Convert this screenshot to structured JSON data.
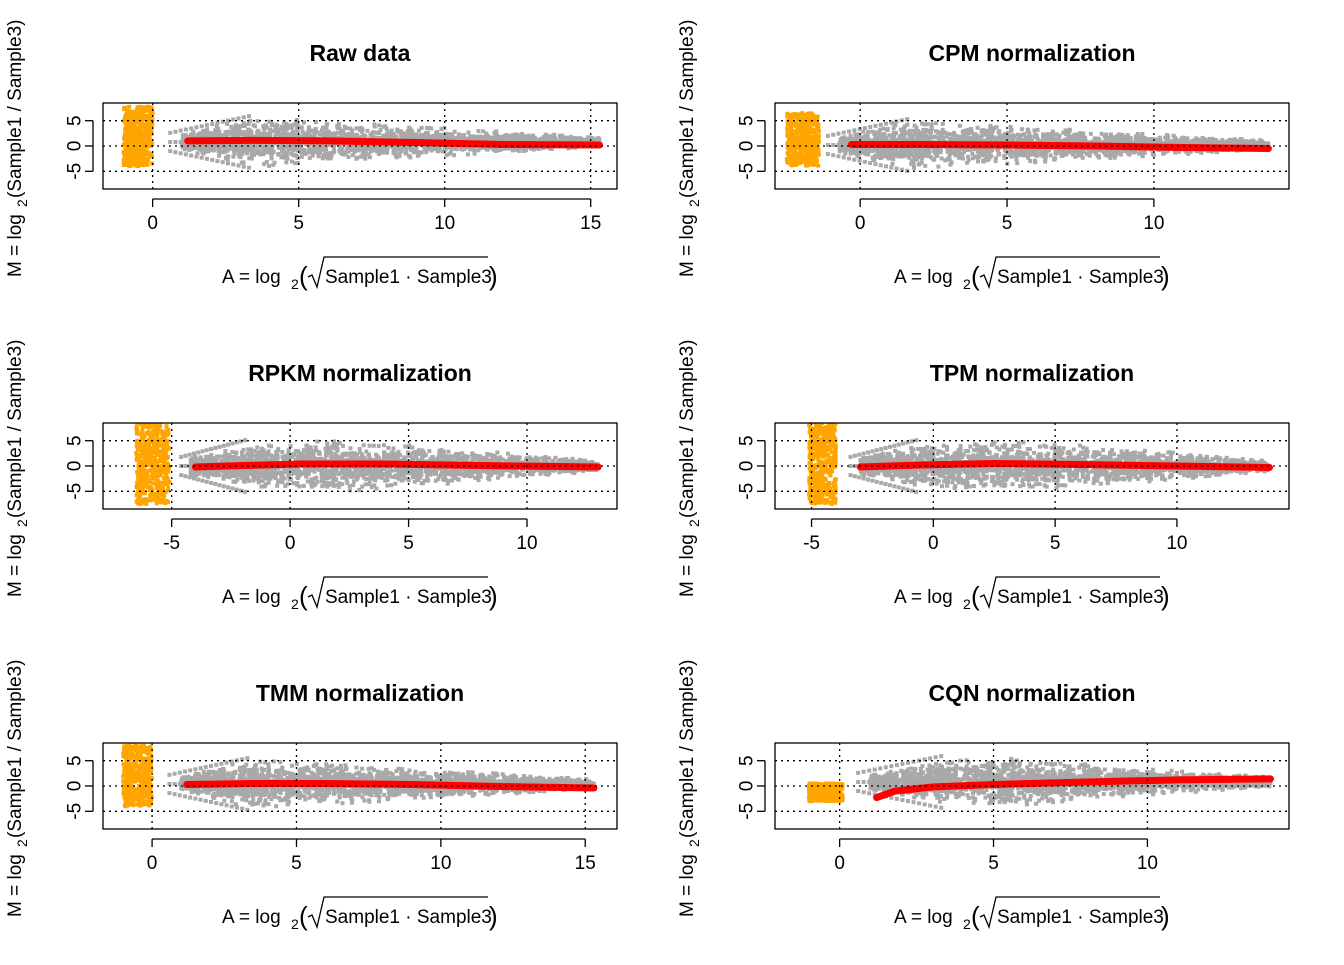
{
  "figure": {
    "xlabel_prefix": "A = log",
    "xlabel_sub": "2",
    "xlabel_expr": "Sample1 · Sample3",
    "ylabel_prefix": "M = log",
    "ylabel_sub": "2",
    "ylabel_expr": "(Sample1 / Sample3)",
    "colors": {
      "points": "#a9a9a9",
      "zero_count": "#ffa500",
      "loess": "#ff0000",
      "grid": "#000000"
    }
  },
  "chart_data": [
    {
      "type": "scatter",
      "title": "Raw data",
      "xlim": [
        -1.7,
        15.9
      ],
      "ylim": [
        -8.5,
        8.5
      ],
      "xticks": [
        0,
        5,
        10,
        15
      ],
      "yticks": [
        5,
        0,
        -5
      ],
      "grid": true,
      "zero_band": {
        "x": [
          -1.0,
          0.0
        ],
        "y": [
          -4.0,
          7.8
        ]
      },
      "cloud": {
        "x_start": 1.0,
        "x_end": 15.3,
        "y_center": 0.8,
        "spread": [
          [
            1.0,
            1.5
          ],
          [
            3.5,
            5.0
          ],
          [
            6.0,
            4.0
          ],
          [
            10.0,
            2.8
          ],
          [
            15.3,
            0.9
          ]
        ]
      },
      "loess": {
        "x": [
          1.2,
          3.5,
          6.0,
          9.0,
          12.0,
          15.3
        ],
        "y": [
          1.0,
          1.1,
          1.0,
          0.7,
          0.3,
          0.2
        ]
      }
    },
    {
      "type": "scatter",
      "title": "CPM normalization",
      "xlim": [
        -2.9,
        14.6
      ],
      "ylim": [
        -8.5,
        8.5
      ],
      "xticks": [
        0,
        5,
        10
      ],
      "yticks": [
        5,
        0,
        -5
      ],
      "grid": true,
      "zero_band": {
        "x": [
          -2.5,
          -1.4
        ],
        "y": [
          -4.0,
          6.5
        ]
      },
      "cloud": {
        "x_start": -0.7,
        "x_end": 13.9,
        "y_center": 0.2,
        "spread": [
          [
            -0.7,
            1.5
          ],
          [
            1.5,
            5.0
          ],
          [
            4.0,
            4.0
          ],
          [
            8.0,
            2.8
          ],
          [
            13.9,
            0.9
          ]
        ]
      },
      "loess": {
        "x": [
          -0.3,
          2.0,
          5.0,
          8.0,
          11.0,
          13.9
        ],
        "y": [
          0.3,
          0.3,
          0.2,
          0.0,
          -0.3,
          -0.5
        ]
      }
    },
    {
      "type": "scatter",
      "title": "RPKM normalization",
      "xlim": [
        -7.9,
        13.8
      ],
      "ylim": [
        -8.5,
        8.5
      ],
      "xticks": [
        -5,
        0,
        5,
        10
      ],
      "yticks": [
        5,
        0,
        -5
      ],
      "grid": true,
      "zero_band": {
        "x": [
          -6.5,
          -5.1
        ],
        "y": [
          -7.5,
          8.5
        ]
      },
      "cloud": {
        "x_start": -4.2,
        "x_end": 13.0,
        "y_center": 0.0,
        "spread": [
          [
            -4.2,
            1.8
          ],
          [
            -1.0,
            4.5
          ],
          [
            2.0,
            5.0
          ],
          [
            7.0,
            3.5
          ],
          [
            13.0,
            1.0
          ]
        ]
      },
      "loess": {
        "x": [
          -4.0,
          -2.0,
          0.5,
          4.0,
          8.0,
          13.0
        ],
        "y": [
          -0.2,
          0.1,
          0.4,
          0.4,
          0.1,
          -0.2
        ]
      }
    },
    {
      "type": "scatter",
      "title": "TPM normalization",
      "xlim": [
        -6.5,
        14.6
      ],
      "ylim": [
        -8.5,
        8.5
      ],
      "xticks": [
        -5,
        0,
        5,
        10
      ],
      "yticks": [
        5,
        0,
        -5
      ],
      "grid": true,
      "zero_band": {
        "x": [
          -5.1,
          -4.0
        ],
        "y": [
          -7.5,
          8.5
        ]
      },
      "cloud": {
        "x_start": -3.0,
        "x_end": 13.8,
        "y_center": 0.0,
        "spread": [
          [
            -3.0,
            1.8
          ],
          [
            0.0,
            4.5
          ],
          [
            3.0,
            5.0
          ],
          [
            8.0,
            3.5
          ],
          [
            13.8,
            1.0
          ]
        ]
      },
      "loess": {
        "x": [
          -3.0,
          -0.5,
          2.5,
          6.0,
          10.0,
          13.8
        ],
        "y": [
          -0.2,
          0.2,
          0.5,
          0.3,
          0.0,
          -0.3
        ]
      }
    },
    {
      "type": "scatter",
      "title": "TMM normalization",
      "xlim": [
        -1.7,
        16.1
      ],
      "ylim": [
        -8.5,
        8.5
      ],
      "xticks": [
        0,
        5,
        10,
        15
      ],
      "yticks": [
        5,
        0,
        -5
      ],
      "grid": true,
      "zero_band": {
        "x": [
          -1.0,
          0.0
        ],
        "y": [
          -4.0,
          8.0
        ]
      },
      "cloud": {
        "x_start": 1.0,
        "x_end": 15.3,
        "y_center": 0.4,
        "spread": [
          [
            1.0,
            1.5
          ],
          [
            3.5,
            5.0
          ],
          [
            6.0,
            4.0
          ],
          [
            10.0,
            2.8
          ],
          [
            15.3,
            0.9
          ]
        ]
      },
      "loess": {
        "x": [
          1.2,
          3.5,
          6.0,
          9.0,
          12.0,
          15.3
        ],
        "y": [
          0.3,
          0.5,
          0.5,
          0.3,
          -0.1,
          -0.4
        ]
      }
    },
    {
      "type": "scatter",
      "title": "CQN normalization",
      "xlim": [
        -2.1,
        14.6
      ],
      "ylim": [
        -8.5,
        8.5
      ],
      "xticks": [
        0,
        5,
        10
      ],
      "yticks": [
        5,
        0,
        -5
      ],
      "grid": true,
      "zero_band": {
        "x": [
          -1.0,
          0.1
        ],
        "y": [
          -3.0,
          0.5
        ]
      },
      "cloud": {
        "x_start": 1.0,
        "x_end": 14.0,
        "y_center": 0.8,
        "spread": [
          [
            1.0,
            1.5
          ],
          [
            3.0,
            4.0
          ],
          [
            5.0,
            5.0
          ],
          [
            9.0,
            3.0
          ],
          [
            14.0,
            1.0
          ]
        ]
      },
      "loess": {
        "x": [
          1.2,
          1.8,
          3.0,
          5.0,
          8.0,
          11.0,
          14.0
        ],
        "y": [
          -2.3,
          -1.0,
          -0.2,
          0.3,
          0.8,
          1.2,
          1.4
        ]
      }
    }
  ]
}
